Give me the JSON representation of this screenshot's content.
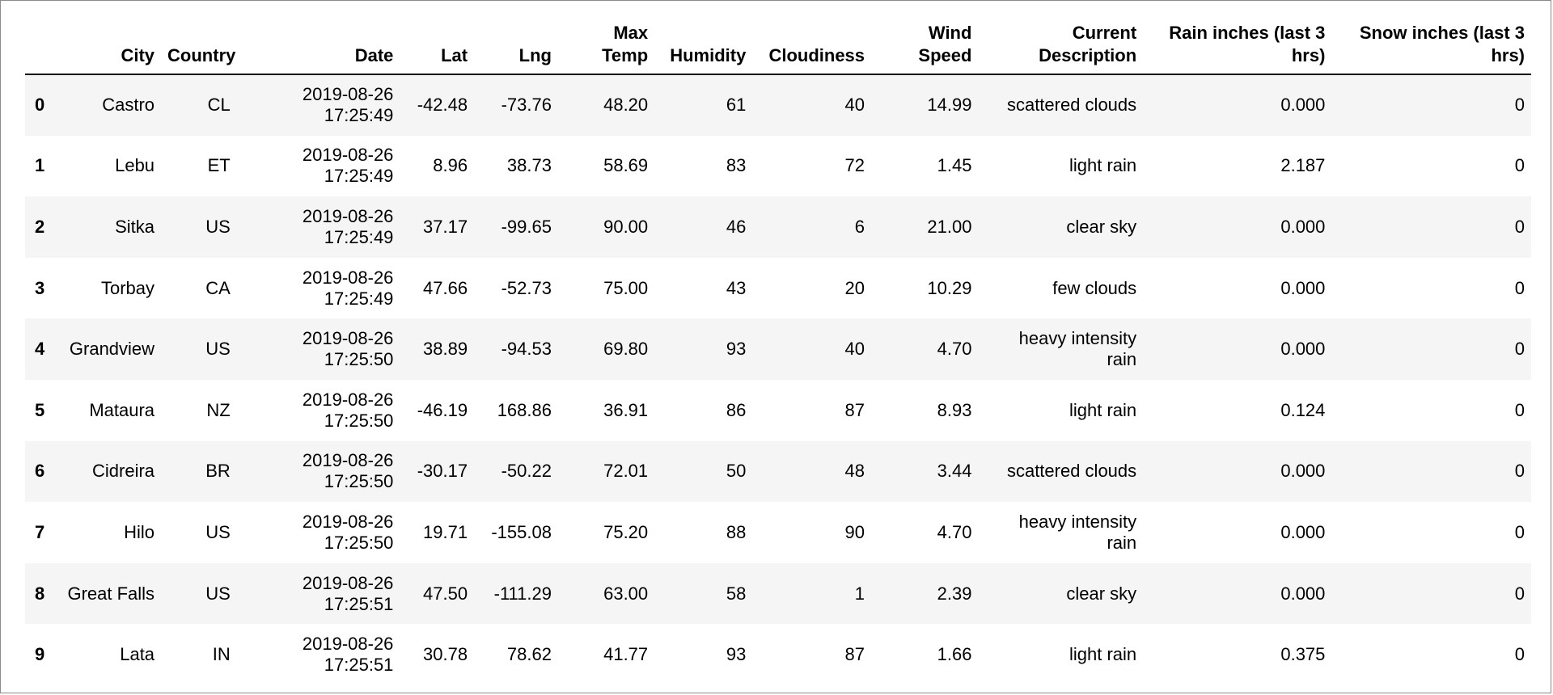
{
  "table": {
    "index_header": "",
    "columns": [
      "City",
      "Country",
      "Date",
      "Lat",
      "Lng",
      "Max Temp",
      "Humidity",
      "Cloudiness",
      "Wind Speed",
      "Current Description",
      "Rain inches (last 3 hrs)",
      "Snow inches (last 3 hrs)"
    ],
    "rows": [
      {
        "index": "0",
        "cells": [
          "Castro",
          "CL",
          "2019-08-26 17:25:49",
          "-42.48",
          "-73.76",
          "48.20",
          "61",
          "40",
          "14.99",
          "scattered clouds",
          "0.000",
          "0"
        ]
      },
      {
        "index": "1",
        "cells": [
          "Lebu",
          "ET",
          "2019-08-26 17:25:49",
          "8.96",
          "38.73",
          "58.69",
          "83",
          "72",
          "1.45",
          "light rain",
          "2.187",
          "0"
        ]
      },
      {
        "index": "2",
        "cells": [
          "Sitka",
          "US",
          "2019-08-26 17:25:49",
          "37.17",
          "-99.65",
          "90.00",
          "46",
          "6",
          "21.00",
          "clear sky",
          "0.000",
          "0"
        ]
      },
      {
        "index": "3",
        "cells": [
          "Torbay",
          "CA",
          "2019-08-26 17:25:49",
          "47.66",
          "-52.73",
          "75.00",
          "43",
          "20",
          "10.29",
          "few clouds",
          "0.000",
          "0"
        ]
      },
      {
        "index": "4",
        "cells": [
          "Grandview",
          "US",
          "2019-08-26 17:25:50",
          "38.89",
          "-94.53",
          "69.80",
          "93",
          "40",
          "4.70",
          "heavy intensity rain",
          "0.000",
          "0"
        ]
      },
      {
        "index": "5",
        "cells": [
          "Mataura",
          "NZ",
          "2019-08-26 17:25:50",
          "-46.19",
          "168.86",
          "36.91",
          "86",
          "87",
          "8.93",
          "light rain",
          "0.124",
          "0"
        ]
      },
      {
        "index": "6",
        "cells": [
          "Cidreira",
          "BR",
          "2019-08-26 17:25:50",
          "-30.17",
          "-50.22",
          "72.01",
          "50",
          "48",
          "3.44",
          "scattered clouds",
          "0.000",
          "0"
        ]
      },
      {
        "index": "7",
        "cells": [
          "Hilo",
          "US",
          "2019-08-26 17:25:50",
          "19.71",
          "-155.08",
          "75.20",
          "88",
          "90",
          "4.70",
          "heavy intensity rain",
          "0.000",
          "0"
        ]
      },
      {
        "index": "8",
        "cells": [
          "Great Falls",
          "US",
          "2019-08-26 17:25:51",
          "47.50",
          "-111.29",
          "63.00",
          "58",
          "1",
          "2.39",
          "clear sky",
          "0.000",
          "0"
        ]
      },
      {
        "index": "9",
        "cells": [
          "Lata",
          "IN",
          "2019-08-26 17:25:51",
          "30.78",
          "78.62",
          "41.77",
          "93",
          "87",
          "1.66",
          "light rain",
          "0.375",
          "0"
        ]
      }
    ]
  }
}
